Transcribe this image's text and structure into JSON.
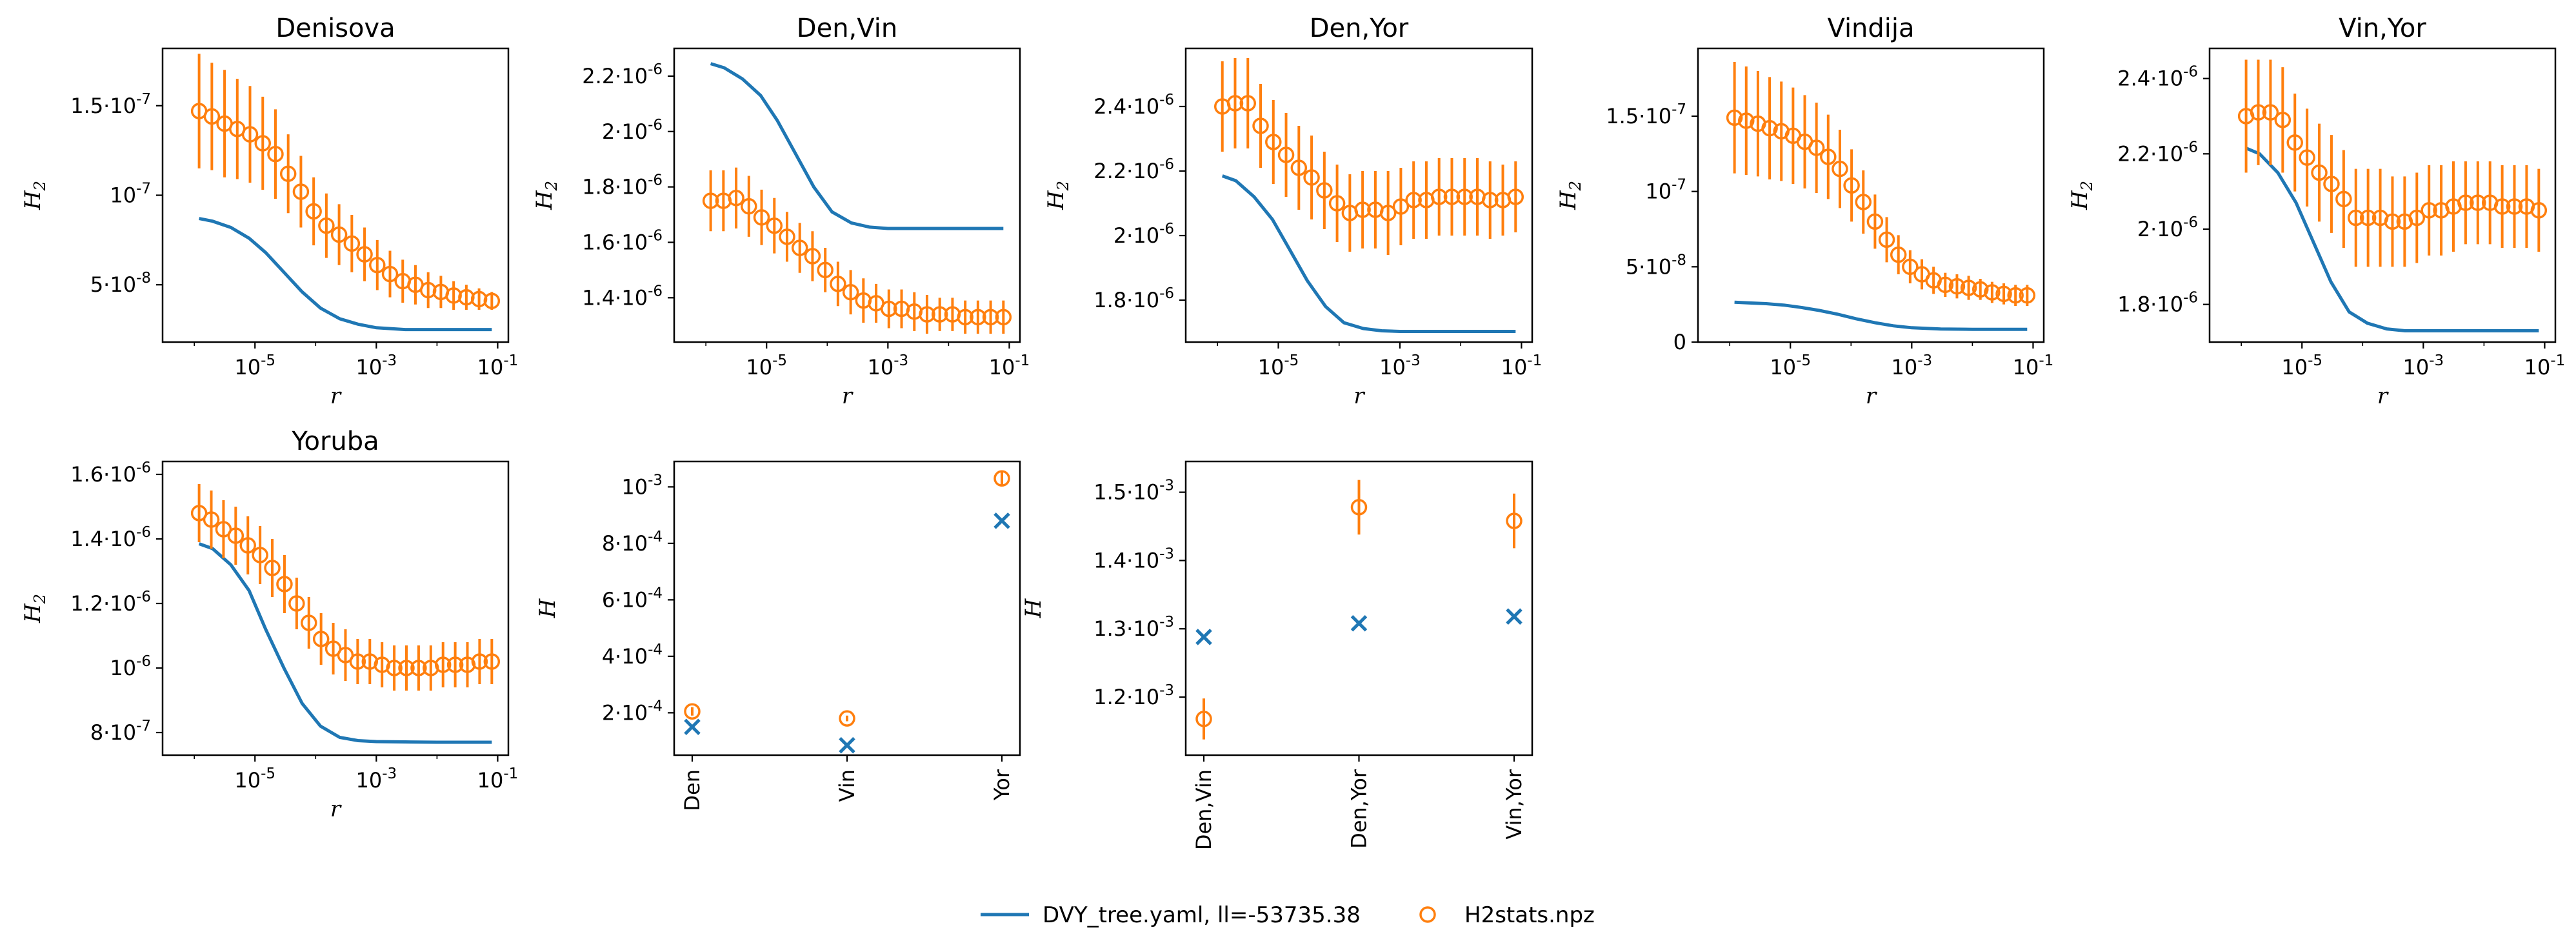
{
  "colors": {
    "model": "#1f77b4",
    "data": "#ff7f0e",
    "axis": "#000000"
  },
  "legend": {
    "model_label": "DVY_tree.yaml, ll=-53735.38",
    "data_label": "H2stats.npz",
    "placement": "bottom-center"
  },
  "chart_data": [
    {
      "type": "line",
      "title": "Denisova",
      "xlabel": "r",
      "ylabel": "H2",
      "xscale": "log",
      "xlim": [
        3e-07,
        0.15
      ],
      "ylim": [
        0.018,
        0.182
      ],
      "xticks": [
        {
          "v": 1e-05,
          "e": "-5"
        },
        {
          "v": 0.001,
          "e": "-3"
        },
        {
          "v": 0.1,
          "e": "-1"
        }
      ],
      "yticks": [
        {
          "v": 0.05,
          "m": "5",
          "e": "-8"
        },
        {
          "v": 0.1,
          "e": "-7"
        },
        {
          "v": 0.15,
          "m": "1.5",
          "e": "-7"
        }
      ],
      "y_scale_factor": 1e-06,
      "model_x": [
        1.2e-06,
        2e-06,
        4e-06,
        8e-06,
        1.5e-05,
        3e-05,
        6e-05,
        0.00012,
        0.00025,
        0.0005,
        0.001,
        0.003,
        0.01,
        0.08
      ],
      "model_y": [
        0.087,
        0.0855,
        0.082,
        0.076,
        0.068,
        0.057,
        0.046,
        0.037,
        0.031,
        0.028,
        0.026,
        0.025,
        0.025,
        0.025
      ],
      "data_y": [
        0.147,
        0.144,
        0.14,
        0.137,
        0.134,
        0.129,
        0.123,
        0.112,
        0.102,
        0.091,
        0.083,
        0.078,
        0.073,
        0.067,
        0.061,
        0.056,
        0.052,
        0.05,
        0.047,
        0.046,
        0.044,
        0.043,
        0.042,
        0.041
      ],
      "data_err": [
        0.032,
        0.03,
        0.03,
        0.028,
        0.027,
        0.026,
        0.025,
        0.022,
        0.02,
        0.019,
        0.018,
        0.017,
        0.016,
        0.015,
        0.014,
        0.013,
        0.012,
        0.011,
        0.01,
        0.009,
        0.008,
        0.007,
        0.006,
        0.005
      ]
    },
    {
      "type": "line",
      "title": "Den,Vin",
      "xlabel": "r",
      "ylabel": "H2",
      "xscale": "log",
      "xlim": [
        3e-07,
        0.15
      ],
      "ylim": [
        1.24,
        2.3
      ],
      "xticks": [
        {
          "v": 1e-05,
          "e": "-5"
        },
        {
          "v": 0.001,
          "e": "-3"
        },
        {
          "v": 0.1,
          "e": "-1"
        }
      ],
      "yticks": [
        {
          "v": 1.4,
          "m": "1.4",
          "e": "-6"
        },
        {
          "v": 1.6,
          "m": "1.6",
          "e": "-6"
        },
        {
          "v": 1.8,
          "m": "1.8",
          "e": "-6"
        },
        {
          "v": 2.0,
          "m": "2",
          "e": "-6"
        },
        {
          "v": 2.2,
          "m": "2.2",
          "e": "-6"
        }
      ],
      "y_scale_factor": 1e-06,
      "model_x": [
        1.2e-06,
        2e-06,
        4e-06,
        8e-06,
        1.5e-05,
        3e-05,
        6e-05,
        0.00012,
        0.00025,
        0.0005,
        0.001,
        0.003,
        0.01,
        0.08
      ],
      "model_y": [
        2.245,
        2.23,
        2.19,
        2.13,
        2.04,
        1.92,
        1.8,
        1.71,
        1.67,
        1.655,
        1.65,
        1.65,
        1.65,
        1.65
      ],
      "data_y": [
        1.75,
        1.75,
        1.76,
        1.73,
        1.69,
        1.66,
        1.62,
        1.58,
        1.55,
        1.5,
        1.45,
        1.42,
        1.39,
        1.38,
        1.36,
        1.36,
        1.35,
        1.34,
        1.34,
        1.34,
        1.33,
        1.33,
        1.33,
        1.33
      ],
      "data_err": [
        0.11,
        0.11,
        0.11,
        0.11,
        0.1,
        0.1,
        0.09,
        0.09,
        0.09,
        0.08,
        0.08,
        0.08,
        0.08,
        0.07,
        0.07,
        0.07,
        0.07,
        0.07,
        0.06,
        0.06,
        0.06,
        0.06,
        0.06,
        0.06
      ]
    },
    {
      "type": "line",
      "title": "Den,Yor",
      "xlabel": "r",
      "ylabel": "H2",
      "xscale": "log",
      "xlim": [
        3e-07,
        0.15
      ],
      "ylim": [
        1.67,
        2.58
      ],
      "xticks": [
        {
          "v": 1e-05,
          "e": "-5"
        },
        {
          "v": 0.001,
          "e": "-3"
        },
        {
          "v": 0.1,
          "e": "-1"
        }
      ],
      "yticks": [
        {
          "v": 1.8,
          "m": "1.8",
          "e": "-6"
        },
        {
          "v": 2.0,
          "m": "2",
          "e": "-6"
        },
        {
          "v": 2.2,
          "m": "2.2",
          "e": "-6"
        },
        {
          "v": 2.4,
          "m": "2.4",
          "e": "-6"
        }
      ],
      "y_scale_factor": 1e-06,
      "model_x": [
        1.2e-06,
        2e-06,
        4e-06,
        8e-06,
        1.5e-05,
        3e-05,
        6e-05,
        0.00012,
        0.00025,
        0.0005,
        0.001,
        0.003,
        0.01,
        0.08
      ],
      "model_y": [
        2.185,
        2.17,
        2.12,
        2.05,
        1.96,
        1.86,
        1.78,
        1.73,
        1.712,
        1.705,
        1.703,
        1.703,
        1.703,
        1.703
      ],
      "data_y": [
        2.4,
        2.41,
        2.41,
        2.34,
        2.29,
        2.25,
        2.21,
        2.18,
        2.14,
        2.1,
        2.07,
        2.08,
        2.08,
        2.07,
        2.09,
        2.11,
        2.11,
        2.12,
        2.12,
        2.12,
        2.12,
        2.11,
        2.11,
        2.12
      ],
      "data_err": [
        0.14,
        0.14,
        0.14,
        0.13,
        0.13,
        0.13,
        0.13,
        0.13,
        0.12,
        0.12,
        0.12,
        0.12,
        0.12,
        0.13,
        0.12,
        0.12,
        0.12,
        0.12,
        0.12,
        0.12,
        0.12,
        0.12,
        0.11,
        0.11
      ]
    },
    {
      "type": "line",
      "title": "Vindija",
      "xlabel": "r",
      "ylabel": "H2",
      "xscale": "log",
      "xlim": [
        3e-07,
        0.15
      ],
      "ylim": [
        0,
        0.195
      ],
      "xticks": [
        {
          "v": 1e-05,
          "e": "-5"
        },
        {
          "v": 0.001,
          "e": "-3"
        },
        {
          "v": 0.1,
          "e": "-1"
        }
      ],
      "yticks": [
        {
          "v": 0,
          "m": "0"
        },
        {
          "v": 0.05,
          "m": "5",
          "e": "-8"
        },
        {
          "v": 0.1,
          "e": "-7"
        },
        {
          "v": 0.15,
          "m": "1.5",
          "e": "-7"
        }
      ],
      "y_scale_factor": 1e-06,
      "model_x": [
        1.2e-06,
        2e-06,
        4e-06,
        8e-06,
        1.5e-05,
        3e-05,
        6e-05,
        0.00012,
        0.00025,
        0.0005,
        0.001,
        0.003,
        0.01,
        0.08
      ],
      "model_y": [
        0.0265,
        0.026,
        0.0255,
        0.0245,
        0.023,
        0.021,
        0.0185,
        0.0155,
        0.0128,
        0.0108,
        0.0095,
        0.0087,
        0.0085,
        0.0085
      ],
      "data_y": [
        0.149,
        0.147,
        0.145,
        0.142,
        0.14,
        0.137,
        0.133,
        0.129,
        0.123,
        0.115,
        0.104,
        0.093,
        0.08,
        0.068,
        0.058,
        0.05,
        0.045,
        0.041,
        0.038,
        0.037,
        0.036,
        0.035,
        0.033,
        0.032,
        0.031,
        0.031
      ],
      "data_err": [
        0.037,
        0.036,
        0.035,
        0.034,
        0.033,
        0.032,
        0.031,
        0.03,
        0.028,
        0.026,
        0.024,
        0.021,
        0.018,
        0.015,
        0.013,
        0.011,
        0.01,
        0.009,
        0.008,
        0.008,
        0.008,
        0.007,
        0.007,
        0.007,
        0.007,
        0.007
      ]
    },
    {
      "type": "line",
      "title": "Vin,Yor",
      "xlabel": "r",
      "ylabel": "H2",
      "xscale": "log",
      "xlim": [
        3e-07,
        0.15
      ],
      "ylim": [
        1.7,
        2.48
      ],
      "xticks": [
        {
          "v": 1e-05,
          "e": "-5"
        },
        {
          "v": 0.001,
          "e": "-3"
        },
        {
          "v": 0.1,
          "e": "-1"
        }
      ],
      "yticks": [
        {
          "v": 1.8,
          "m": "1.8",
          "e": "-6"
        },
        {
          "v": 2.0,
          "m": "2",
          "e": "-6"
        },
        {
          "v": 2.2,
          "m": "2.2",
          "e": "-6"
        },
        {
          "v": 2.4,
          "m": "2.4",
          "e": "-6"
        }
      ],
      "y_scale_factor": 1e-06,
      "model_x": [
        1.2e-06,
        2e-06,
        4e-06,
        8e-06,
        1.5e-05,
        3e-05,
        6e-05,
        0.00012,
        0.00025,
        0.0005,
        0.001,
        0.003,
        0.01,
        0.08
      ],
      "model_y": [
        2.215,
        2.2,
        2.15,
        2.07,
        1.97,
        1.86,
        1.78,
        1.75,
        1.735,
        1.73,
        1.73,
        1.73,
        1.73,
        1.73
      ],
      "data_y": [
        2.3,
        2.31,
        2.31,
        2.29,
        2.23,
        2.19,
        2.15,
        2.12,
        2.08,
        2.03,
        2.03,
        2.03,
        2.02,
        2.02,
        2.03,
        2.05,
        2.05,
        2.06,
        2.07,
        2.07,
        2.07,
        2.06,
        2.06,
        2.06,
        2.05
      ],
      "data_err": [
        0.15,
        0.14,
        0.14,
        0.14,
        0.13,
        0.13,
        0.13,
        0.13,
        0.13,
        0.13,
        0.13,
        0.13,
        0.12,
        0.12,
        0.12,
        0.12,
        0.12,
        0.12,
        0.11,
        0.11,
        0.11,
        0.11,
        0.11,
        0.11,
        0.11
      ]
    },
    {
      "type": "line",
      "title": "Yoruba",
      "xlabel": "r",
      "ylabel": "H2",
      "xscale": "log",
      "xlim": [
        3e-07,
        0.15
      ],
      "ylim": [
        0.73,
        1.64
      ],
      "xticks": [
        {
          "v": 1e-05,
          "e": "-5"
        },
        {
          "v": 0.001,
          "e": "-3"
        },
        {
          "v": 0.1,
          "e": "-1"
        }
      ],
      "yticks": [
        {
          "v": 0.8,
          "m": "8",
          "e": "-7"
        },
        {
          "v": 1.0,
          "e": "-6"
        },
        {
          "v": 1.2,
          "m": "1.2",
          "e": "-6"
        },
        {
          "v": 1.4,
          "m": "1.4",
          "e": "-6"
        },
        {
          "v": 1.6,
          "m": "1.6",
          "e": "-6"
        }
      ],
      "y_scale_factor": 1e-06,
      "model_x": [
        1.2e-06,
        2e-06,
        4e-06,
        8e-06,
        1.5e-05,
        3e-05,
        6e-05,
        0.00012,
        0.00025,
        0.0005,
        0.001,
        0.003,
        0.01,
        0.08
      ],
      "model_y": [
        1.385,
        1.37,
        1.32,
        1.24,
        1.12,
        1.0,
        0.89,
        0.82,
        0.785,
        0.775,
        0.772,
        0.771,
        0.77,
        0.77
      ],
      "data_y": [
        1.48,
        1.46,
        1.43,
        1.41,
        1.38,
        1.35,
        1.31,
        1.26,
        1.2,
        1.14,
        1.09,
        1.06,
        1.04,
        1.02,
        1.02,
        1.01,
        1.0,
        1.0,
        1.0,
        1.0,
        1.01,
        1.01,
        1.01,
        1.02,
        1.02
      ],
      "data_err": [
        0.09,
        0.09,
        0.09,
        0.09,
        0.09,
        0.09,
        0.09,
        0.09,
        0.08,
        0.08,
        0.08,
        0.08,
        0.08,
        0.07,
        0.07,
        0.07,
        0.07,
        0.07,
        0.07,
        0.07,
        0.07,
        0.07,
        0.07,
        0.07,
        0.07
      ]
    },
    {
      "type": "scatter",
      "title": "",
      "xlabel": "",
      "ylabel": "H",
      "categories": [
        "Den",
        "Vin",
        "Yor"
      ],
      "ylim": [
        0.5,
        10.9
      ],
      "yticks": [
        {
          "v": 2,
          "m": "2",
          "e": "-4"
        },
        {
          "v": 4,
          "m": "4",
          "e": "-4"
        },
        {
          "v": 6,
          "m": "6",
          "e": "-4"
        },
        {
          "v": 8,
          "m": "8",
          "e": "-4"
        },
        {
          "v": 10,
          "e": "-3"
        }
      ],
      "y_scale_factor": 0.0001,
      "model_values": [
        1.5,
        0.85,
        8.8
      ],
      "data_values": [
        2.05,
        1.8,
        10.3
      ],
      "data_err": [
        0.15,
        0.1,
        0.25
      ]
    },
    {
      "type": "scatter",
      "title": "",
      "xlabel": "",
      "ylabel": "H",
      "categories": [
        "Den,Vin",
        "Den,Yor",
        "Vin,Yor"
      ],
      "ylim": [
        1.115,
        1.545
      ],
      "yticks": [
        {
          "v": 1.2,
          "m": "1.2",
          "e": "-3"
        },
        {
          "v": 1.3,
          "m": "1.3",
          "e": "-3"
        },
        {
          "v": 1.4,
          "m": "1.4",
          "e": "-3"
        },
        {
          "v": 1.5,
          "m": "1.5",
          "e": "-3"
        }
      ],
      "y_scale_factor": 0.001,
      "model_values": [
        1.288,
        1.308,
        1.318
      ],
      "data_values": [
        1.168,
        1.478,
        1.458
      ],
      "data_err": [
        0.03,
        0.04,
        0.04
      ]
    }
  ]
}
